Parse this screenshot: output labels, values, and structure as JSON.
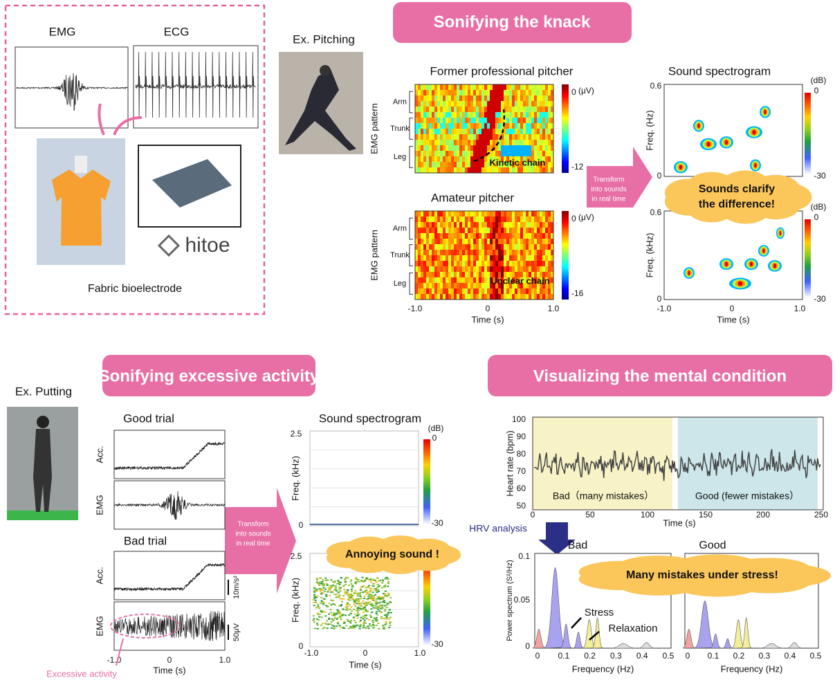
{
  "hitoe_panel": {
    "emg_label": "EMG",
    "ecg_label": "ECG",
    "logo": "hitoe",
    "caption": "Fabric bioelectrode"
  },
  "knack": {
    "banner": "Sonifying the knack",
    "example": "Ex. Pitching",
    "heatmaps": [
      {
        "title": "Former professional pitcher",
        "rows": [
          "Arm",
          "Trunk",
          "Leg"
        ],
        "y_label": "EMG pattern",
        "cbar_top": "0",
        "cbar_unit": "(μV)",
        "cbar_bottom": "-12",
        "annotation": "Kinetic chain"
      },
      {
        "title": "Amateur pitcher",
        "rows": [
          "Arm",
          "Trunk",
          "Leg"
        ],
        "y_label": "EMG pattern",
        "cbar_top": "0",
        "cbar_unit": "(μV)",
        "cbar_bottom": "-16",
        "annotation": "Unclear chain"
      }
    ],
    "xticks": [
      "-1.0",
      "0",
      "1.0"
    ],
    "x_label": "Time (s)",
    "transform": [
      "Transform",
      "into sounds",
      "in real time"
    ],
    "spectrogram": {
      "title": "Sound spectrogram",
      "y_labels": [
        "Freq. (Hz)",
        "Freq. (kHz)"
      ],
      "y_top": "0.6",
      "y_bottom": "0",
      "cbar_unit": "(dB)",
      "cbar_top": "0",
      "cbar_bottom": "-30",
      "xticks": [
        "-1.0",
        "0",
        "1.0"
      ],
      "x_label": "Time (s)"
    },
    "callout": [
      "Sounds clarify",
      "the difference!"
    ]
  },
  "excessive": {
    "banner": "Sonifying excessive activity",
    "example": "Ex. Putting",
    "trials": [
      "Good trial",
      "Bad trial"
    ],
    "channels": [
      "Acc.",
      "EMG"
    ],
    "scales": [
      "10m/s²",
      "50μV"
    ],
    "xticks": [
      "-1.0",
      "0",
      "1.0"
    ],
    "x_label": "Time (s)",
    "annotation": "Excessive activity",
    "transform": [
      "Transform",
      "into sounds",
      "in real time"
    ],
    "spectrogram": {
      "title": "Sound spectrogram",
      "y_label": "Freq. (kHz)",
      "y_top": "2.5",
      "y_bottom": "0",
      "cbar_unit": "(dB)",
      "cbar_top": "0",
      "cbar_bottom": "-30",
      "xticks": [
        "-1.0",
        "0",
        "1.0"
      ],
      "x_label": "Time (s)"
    },
    "callout": "Annoying sound !"
  },
  "mental": {
    "banner": "Visualizing the mental condition",
    "heart_rate": {
      "y_label": "Heart rate (bpm)",
      "yticks": [
        "100",
        "90",
        "80",
        "70",
        "60",
        "50"
      ],
      "xticks": [
        "0",
        "50",
        "100",
        "150",
        "200",
        "250"
      ],
      "x_label": "Time (s)",
      "regions": [
        "Bad（many mistakes）",
        "Good (fewer mistakes）"
      ]
    },
    "hrv_label": "HRV analysis",
    "spectra": {
      "titles": [
        "Bad",
        "Good"
      ],
      "y_label": "Power spectrum (S²/Hz)",
      "yticks": [
        "0.1",
        "0.05",
        "0"
      ],
      "xticks": [
        "0",
        "0.1",
        "0.2",
        "0.3",
        "0.4",
        "0.5"
      ],
      "x_label": "Frequency (Hz)",
      "annotations": [
        "Stress",
        "Relaxation"
      ]
    },
    "callout": "Many mistakes under stress!"
  }
}
